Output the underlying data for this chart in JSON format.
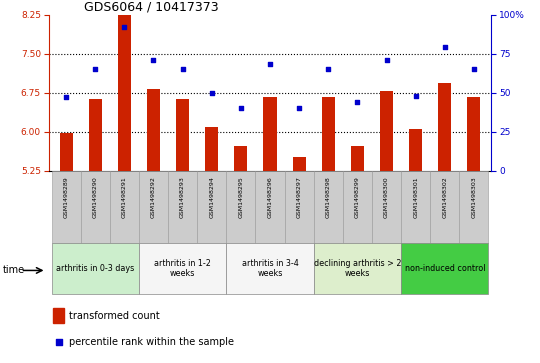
{
  "title": "GDS6064 / 10417373",
  "samples": [
    "GSM1498289",
    "GSM1498290",
    "GSM1498291",
    "GSM1498292",
    "GSM1498293",
    "GSM1498294",
    "GSM1498295",
    "GSM1498296",
    "GSM1498297",
    "GSM1498298",
    "GSM1498299",
    "GSM1498300",
    "GSM1498301",
    "GSM1498302",
    "GSM1498303"
  ],
  "bar_values": [
    5.97,
    6.63,
    8.55,
    6.82,
    6.63,
    6.08,
    5.72,
    6.67,
    5.52,
    6.67,
    5.72,
    6.78,
    6.05,
    6.93,
    6.67
  ],
  "dot_pct": [
    47,
    65,
    92,
    71,
    65,
    50,
    40,
    68,
    40,
    65,
    44,
    71,
    48,
    79,
    65
  ],
  "ylim_left": [
    5.25,
    8.25
  ],
  "ylim_right": [
    0,
    100
  ],
  "yticks_left": [
    5.25,
    6.0,
    6.75,
    7.5,
    8.25
  ],
  "yticks_right": [
    0,
    25,
    50,
    75,
    100
  ],
  "hgrid": [
    6.0,
    6.75,
    7.5
  ],
  "groups": [
    {
      "label": "arthritis in 0-3 days",
      "start": 0,
      "end": 3,
      "color": "#cceecc"
    },
    {
      "label": "arthritis in 1-2\nweeks",
      "start": 3,
      "end": 6,
      "color": "#f5f5f5"
    },
    {
      "label": "arthritis in 3-4\nweeks",
      "start": 6,
      "end": 9,
      "color": "#f5f5f5"
    },
    {
      "label": "declining arthritis > 2\nweeks",
      "start": 9,
      "end": 12,
      "color": "#ddeecc"
    },
    {
      "label": "non-induced control",
      "start": 12,
      "end": 15,
      "color": "#44cc44"
    }
  ],
  "bar_color": "#cc2200",
  "dot_color": "#0000cc",
  "bar_width": 0.45,
  "left_tick_color": "#cc2200",
  "right_tick_color": "#0000cc",
  "sample_box_color": "#cccccc",
  "title_fontsize": 9,
  "axis_tick_fontsize": 6.5,
  "sample_fontsize": 4.5,
  "group_fontsize": 5.8,
  "legend_fontsize": 7
}
